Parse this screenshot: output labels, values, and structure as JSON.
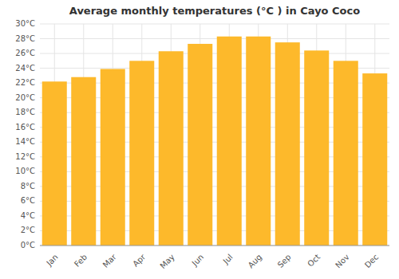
{
  "chart_data": {
    "type": "bar",
    "title": "Average monthly temperatures (°C ) in Cayo Coco",
    "categories": [
      "Jan",
      "Feb",
      "Mar",
      "Apr",
      "May",
      "Jun",
      "Jul",
      "Aug",
      "Sep",
      "Oct",
      "Nov",
      "Dec"
    ],
    "values": [
      22.2,
      22.8,
      23.9,
      25.0,
      26.3,
      27.3,
      28.3,
      28.3,
      27.5,
      26.4,
      25.0,
      23.3
    ],
    "color": "#FDB92B",
    "ylim": [
      0,
      30
    ],
    "yticks": [
      {
        "value": 0,
        "label": "0°C"
      },
      {
        "value": 2,
        "label": "2°C"
      },
      {
        "value": 4,
        "label": "4°C"
      },
      {
        "value": 6,
        "label": "6°C"
      },
      {
        "value": 8,
        "label": "8°C"
      },
      {
        "value": 10,
        "label": "10°C"
      },
      {
        "value": 12,
        "label": "12°C"
      },
      {
        "value": 14,
        "label": "14°C"
      },
      {
        "value": 16,
        "label": "16°C"
      },
      {
        "value": 18,
        "label": "18°C"
      },
      {
        "value": 20,
        "label": "20°C"
      },
      {
        "value": 22,
        "label": "22°C"
      },
      {
        "value": 24,
        "label": "24°C"
      },
      {
        "value": 26,
        "label": "26°C"
      },
      {
        "value": 28,
        "label": "28°C"
      },
      {
        "value": 30,
        "label": "30°C"
      }
    ],
    "grid": true
  }
}
